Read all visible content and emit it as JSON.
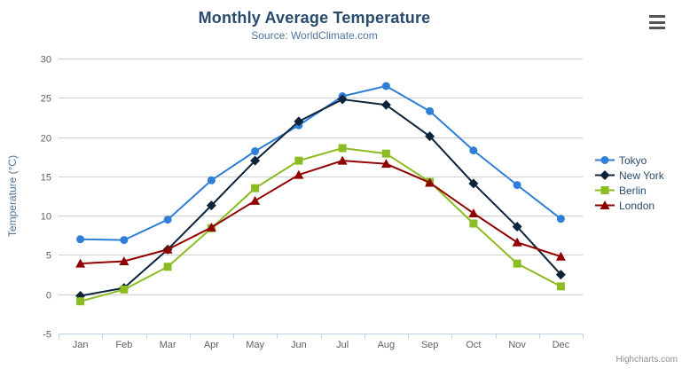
{
  "chart_data": {
    "type": "line",
    "title": "Monthly Average Temperature",
    "subtitle": "Source: WorldClimate.com",
    "categories": [
      "Jan",
      "Feb",
      "Mar",
      "Apr",
      "May",
      "Jun",
      "Jul",
      "Aug",
      "Sep",
      "Oct",
      "Nov",
      "Dec"
    ],
    "xlabel": "",
    "ylabel": "Temperature (°C)",
    "ylim": [
      -5,
      30
    ],
    "yticks": [
      -5,
      0,
      5,
      10,
      15,
      20,
      25,
      30
    ],
    "grid": true,
    "legend_position": "right",
    "series": [
      {
        "name": "Tokyo",
        "color": "#2f7ed8",
        "marker": "circle",
        "values": [
          7.0,
          6.9,
          9.5,
          14.5,
          18.2,
          21.5,
          25.2,
          26.5,
          23.3,
          18.3,
          13.9,
          9.6
        ]
      },
      {
        "name": "New York",
        "color": "#0d233a",
        "marker": "diamond",
        "values": [
          -0.2,
          0.8,
          5.7,
          11.3,
          17.0,
          22.0,
          24.8,
          24.1,
          20.1,
          14.1,
          8.6,
          2.5
        ]
      },
      {
        "name": "Berlin",
        "color": "#8bbc21",
        "marker": "square",
        "values": [
          -0.9,
          0.6,
          3.5,
          8.4,
          13.5,
          17.0,
          18.6,
          17.9,
          14.3,
          9.0,
          3.9,
          1.0
        ]
      },
      {
        "name": "London",
        "color": "#910000",
        "marker": "triangle",
        "values": [
          3.9,
          4.2,
          5.7,
          8.5,
          11.9,
          15.2,
          17.0,
          16.6,
          14.2,
          10.3,
          6.6,
          4.8
        ]
      }
    ],
    "credits": "Highcharts.com"
  },
  "colors": {
    "title": "#274b6d",
    "subtitle": "#4d759e",
    "axis_title": "#4d759e",
    "axis_label": "#606060",
    "grid": "#d0d0d0",
    "axis_line": "#c0d0e0",
    "legend_text": "#274b6d",
    "credits": "#909090",
    "menu_icon": "#555555",
    "background": "#ffffff"
  }
}
